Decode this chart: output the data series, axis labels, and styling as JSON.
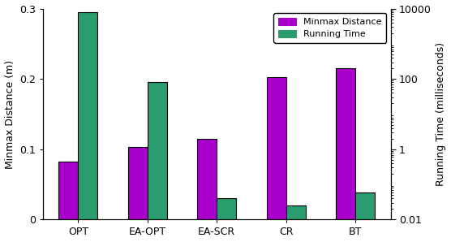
{
  "categories": [
    "OPT",
    "EA-OPT",
    "EA-SCR",
    "CR",
    "BT"
  ],
  "minmax_distance": [
    0.083,
    0.103,
    0.115,
    0.202,
    0.215
  ],
  "running_time": [
    8000,
    80,
    0.04,
    0.025,
    0.06
  ],
  "minmax_color": "#aa00cc",
  "runtime_color": "#2a9d6e",
  "left_ylabel": "Minmax Distance (m)",
  "right_ylabel": "Running Time (milliseconds)",
  "ylim_left": [
    0,
    0.3
  ],
  "ylim_right": [
    0.01,
    10000
  ],
  "legend_labels": [
    "Minmax Distance",
    "Running Time"
  ],
  "bar_width": 0.28,
  "tick_fontsize": 9,
  "label_fontsize": 9
}
